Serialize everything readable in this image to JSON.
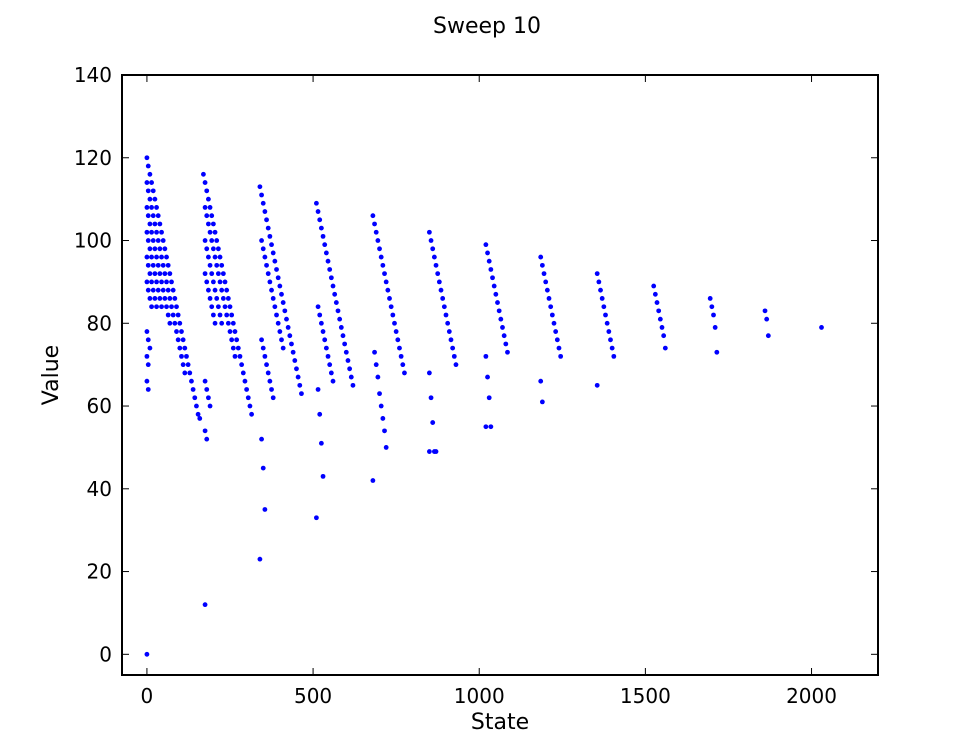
{
  "chart_data": {
    "type": "scatter",
    "title": "Sweep 10",
    "xlabel": "State",
    "ylabel": "Value",
    "xlim": [
      -75,
      2200
    ],
    "ylim": [
      -5,
      140
    ],
    "xticks": [
      0,
      500,
      1000,
      1500,
      2000
    ],
    "yticks": [
      0,
      20,
      40,
      60,
      80,
      100,
      120,
      140
    ],
    "grid": false,
    "marker_color": "#0000ff",
    "series": [
      {
        "x": [
          0,
          4,
          9,
          14,
          19,
          24,
          29,
          34,
          39,
          44,
          49,
          54,
          59,
          64,
          69,
          74,
          79,
          84,
          89,
          94,
          99,
          104,
          109,
          114,
          119,
          124,
          129,
          134,
          139,
          144,
          149,
          154,
          159,
          0,
          4,
          9,
          14,
          19,
          24,
          29,
          34,
          39,
          44,
          49,
          54,
          59,
          64,
          69,
          74,
          79,
          84,
          89,
          94,
          99,
          104,
          109,
          114,
          0,
          4,
          9,
          14,
          19,
          24,
          29,
          34,
          39,
          44,
          49,
          54,
          59,
          64,
          69,
          0,
          4,
          9,
          14,
          19,
          24,
          29,
          34,
          39,
          44,
          0,
          4,
          9,
          14,
          19,
          24,
          29,
          0,
          4,
          9,
          14,
          0,
          4,
          9,
          0,
          4,
          0,
          4,
          0,
          170,
          175,
          180,
          185,
          190,
          195,
          200,
          205,
          210,
          215,
          220,
          225,
          230,
          235,
          240,
          245,
          250,
          255,
          260,
          265,
          270,
          275,
          280,
          285,
          290,
          295,
          300,
          305,
          310,
          315,
          175,
          180,
          185,
          190,
          195,
          200,
          205,
          210,
          215,
          220,
          225,
          230,
          235,
          240,
          245,
          250,
          255,
          260,
          265,
          175,
          180,
          185,
          190,
          195,
          200,
          205,
          210,
          215,
          220,
          225,
          175,
          180,
          185,
          190,
          195,
          200,
          205,
          175,
          180,
          185,
          190,
          175,
          180,
          175,
          340,
          345,
          350,
          355,
          360,
          365,
          370,
          375,
          380,
          385,
          390,
          395,
          400,
          405,
          410,
          415,
          420,
          425,
          430,
          435,
          440,
          445,
          450,
          455,
          460,
          465,
          345,
          350,
          355,
          360,
          365,
          370,
          375,
          380,
          385,
          390,
          395,
          400,
          405,
          410,
          345,
          350,
          355,
          360,
          365,
          370,
          375,
          380,
          345,
          350,
          355,
          340,
          510,
          515,
          520,
          525,
          530,
          535,
          540,
          545,
          550,
          555,
          560,
          565,
          570,
          575,
          580,
          585,
          590,
          595,
          600,
          605,
          610,
          615,
          620,
          515,
          520,
          525,
          530,
          535,
          540,
          545,
          550,
          555,
          560,
          515,
          520,
          525,
          530,
          510,
          680,
          685,
          690,
          695,
          700,
          705,
          710,
          715,
          720,
          725,
          730,
          735,
          740,
          745,
          750,
          755,
          760,
          765,
          770,
          775,
          685,
          690,
          695,
          700,
          705,
          710,
          715,
          720,
          680,
          850,
          855,
          860,
          865,
          870,
          875,
          880,
          885,
          890,
          895,
          900,
          905,
          910,
          915,
          920,
          925,
          930,
          850,
          855,
          860,
          865,
          870,
          850,
          1020,
          1025,
          1030,
          1035,
          1040,
          1045,
          1050,
          1055,
          1060,
          1065,
          1070,
          1075,
          1080,
          1085,
          1020,
          1025,
          1030,
          1035,
          1020,
          1185,
          1190,
          1195,
          1200,
          1205,
          1210,
          1215,
          1220,
          1225,
          1230,
          1235,
          1240,
          1245,
          1185,
          1190,
          1355,
          1360,
          1365,
          1370,
          1375,
          1380,
          1385,
          1390,
          1395,
          1400,
          1405,
          1355,
          1525,
          1530,
          1535,
          1540,
          1545,
          1550,
          1555,
          1560,
          1695,
          1700,
          1705,
          1710,
          1715,
          1860,
          1865,
          1870,
          2030
        ],
        "y": [
          120,
          118,
          116,
          114,
          112,
          110,
          108,
          106,
          104,
          102,
          100,
          98,
          96,
          94,
          92,
          90,
          88,
          86,
          84,
          82,
          80,
          78,
          76,
          74,
          72,
          70,
          68,
          66,
          64,
          62,
          60,
          58,
          57,
          114,
          112,
          110,
          108,
          106,
          104,
          102,
          100,
          98,
          96,
          94,
          92,
          90,
          88,
          86,
          84,
          82,
          80,
          78,
          76,
          74,
          72,
          70,
          68,
          108,
          106,
          104,
          102,
          100,
          98,
          96,
          94,
          92,
          90,
          88,
          86,
          84,
          82,
          80,
          102,
          100,
          98,
          96,
          94,
          92,
          90,
          88,
          86,
          84,
          96,
          94,
          92,
          90,
          88,
          86,
          84,
          90,
          88,
          86,
          84,
          78,
          76,
          74,
          72,
          70,
          66,
          64,
          0,
          116,
          114,
          112,
          110,
          108,
          106,
          104,
          102,
          100,
          98,
          96,
          94,
          92,
          90,
          88,
          86,
          84,
          82,
          80,
          78,
          76,
          74,
          72,
          70,
          68,
          66,
          64,
          62,
          60,
          58,
          108,
          106,
          104,
          102,
          100,
          98,
          96,
          94,
          92,
          90,
          88,
          86,
          84,
          82,
          80,
          78,
          76,
          74,
          72,
          100,
          98,
          96,
          94,
          92,
          90,
          88,
          86,
          84,
          82,
          80,
          92,
          90,
          88,
          86,
          84,
          82,
          80,
          66,
          64,
          62,
          60,
          54,
          52,
          12,
          113,
          111,
          109,
          107,
          105,
          103,
          101,
          99,
          97,
          95,
          93,
          91,
          89,
          87,
          85,
          83,
          81,
          79,
          77,
          75,
          73,
          71,
          69,
          67,
          65,
          63,
          100,
          98,
          96,
          94,
          92,
          90,
          88,
          86,
          84,
          82,
          80,
          78,
          76,
          74,
          76,
          74,
          72,
          70,
          68,
          66,
          64,
          62,
          52,
          45,
          35,
          23,
          109,
          107,
          105,
          103,
          101,
          99,
          97,
          95,
          93,
          91,
          89,
          87,
          85,
          83,
          81,
          79,
          77,
          75,
          73,
          71,
          69,
          67,
          65,
          84,
          82,
          80,
          78,
          76,
          74,
          72,
          70,
          68,
          66,
          64,
          58,
          51,
          43,
          33,
          106,
          104,
          102,
          100,
          98,
          96,
          94,
          92,
          90,
          88,
          86,
          84,
          82,
          80,
          78,
          76,
          74,
          72,
          70,
          68,
          73,
          70,
          67,
          63,
          60,
          57,
          54,
          50,
          42,
          102,
          100,
          98,
          96,
          94,
          92,
          90,
          88,
          86,
          84,
          82,
          80,
          78,
          76,
          74,
          72,
          70,
          68,
          62,
          56,
          49,
          49,
          49,
          99,
          97,
          95,
          93,
          91,
          89,
          87,
          85,
          83,
          81,
          79,
          77,
          75,
          73,
          72,
          67,
          62,
          55,
          55,
          96,
          94,
          92,
          90,
          88,
          86,
          84,
          82,
          80,
          78,
          76,
          74,
          72,
          66,
          61,
          92,
          90,
          88,
          86,
          84,
          82,
          80,
          78,
          76,
          74,
          72,
          65,
          89,
          87,
          85,
          83,
          81,
          79,
          77,
          74,
          86,
          84,
          82,
          79,
          73,
          83,
          81,
          77,
          79
        ]
      }
    ]
  }
}
